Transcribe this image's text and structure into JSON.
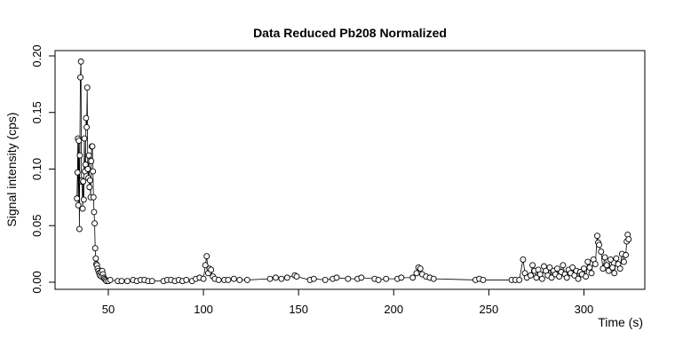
{
  "chart_data": {
    "type": "line",
    "title": "Data Reduced Pb208 Normalized",
    "x_label": "Time (s)",
    "y_label": "Signal intensity (cps)",
    "x": [
      33.5,
      33.8,
      34,
      34.2,
      34.5,
      34.8,
      35,
      35.3,
      35.6,
      35.9,
      36.2,
      36.5,
      36.8,
      37.1,
      37.4,
      37.7,
      38,
      38.3,
      38.6,
      38.9,
      39.2,
      39.5,
      39.8,
      40.1,
      40.4,
      40.7,
      41,
      41.3,
      41.6,
      41.9,
      42.2,
      42.5,
      42.8,
      43.1,
      43.4,
      43.7,
      44,
      44.4,
      44.8,
      45.2,
      45.6,
      46,
      46.4,
      46.8,
      47.2,
      47.6,
      48,
      48.5,
      49,
      50,
      51,
      55,
      57,
      60,
      63,
      65,
      67,
      69,
      71,
      73,
      79,
      81,
      83,
      85,
      87,
      89,
      91,
      94,
      96,
      98,
      100,
      101,
      101.7,
      102.5,
      103.2,
      104,
      105,
      106,
      108,
      111,
      113,
      116,
      119,
      123,
      135,
      138,
      141,
      144,
      148,
      149,
      156,
      158,
      164,
      168,
      170,
      176,
      181,
      183,
      190,
      192,
      196,
      202,
      204,
      210,
      212,
      213,
      214,
      215,
      217,
      219,
      221,
      243,
      245,
      247,
      262,
      264,
      266,
      268,
      269,
      270,
      272,
      273,
      274,
      275,
      276,
      277,
      278,
      279,
      280,
      281,
      282,
      283,
      284,
      285,
      286,
      287,
      288,
      289,
      290,
      291,
      292,
      293,
      294,
      295,
      296,
      297,
      298,
      299,
      300,
      301,
      302,
      303,
      304,
      305,
      306,
      307,
      307.5,
      308,
      309,
      310,
      311,
      312,
      313,
      314,
      315,
      316,
      317,
      318,
      319,
      320,
      321,
      322,
      322.5,
      323,
      323.5
    ],
    "values": [
      0.074,
      0.097,
      0.127,
      0.068,
      0.125,
      0.047,
      0.112,
      0.181,
      0.195,
      0.089,
      0.09,
      0.065,
      0.089,
      0.073,
      0.127,
      0.098,
      0.104,
      0.145,
      0.137,
      0.172,
      0.1,
      0.092,
      0.112,
      0.084,
      0.09,
      0.075,
      0.107,
      0.12,
      0.12,
      0.098,
      0.075,
      0.062,
      0.052,
      0.03,
      0.021,
      0.016,
      0.015,
      0.012,
      0.01,
      0.008,
      0.006,
      0.009,
      0.005,
      0.01,
      0.007,
      0.004,
      0.003,
      0.002,
      0.001,
      0.001,
      0.002,
      0.001,
      0.001,
      0.001,
      0.002,
      0.001,
      0.002,
      0.002,
      0.001,
      0.001,
      0.001,
      0.002,
      0.002,
      0.001,
      0.002,
      0.001,
      0.002,
      0.001,
      0.003,
      0.004,
      0.003,
      0.015,
      0.023,
      0.008,
      0.012,
      0.011,
      0.005,
      0.003,
      0.002,
      0.002,
      0.002,
      0.003,
      0.002,
      0.002,
      0.003,
      0.004,
      0.003,
      0.004,
      0.006,
      0.005,
      0.002,
      0.003,
      0.002,
      0.003,
      0.004,
      0.003,
      0.003,
      0.004,
      0.003,
      0.002,
      0.003,
      0.003,
      0.004,
      0.004,
      0.008,
      0.013,
      0.012,
      0.007,
      0.005,
      0.004,
      0.003,
      0.002,
      0.003,
      0.002,
      0.002,
      0.002,
      0.002,
      0.02,
      0.008,
      0.004,
      0.006,
      0.015,
      0.01,
      0.004,
      0.011,
      0.007,
      0.003,
      0.014,
      0.01,
      0.006,
      0.013,
      0.004,
      0.01,
      0.007,
      0.012,
      0.005,
      0.009,
      0.015,
      0.007,
      0.004,
      0.011,
      0.008,
      0.013,
      0.006,
      0.01,
      0.003,
      0.009,
      0.007,
      0.012,
      0.005,
      0.018,
      0.013,
      0.008,
      0.02,
      0.016,
      0.041,
      0.035,
      0.033,
      0.027,
      0.012,
      0.022,
      0.015,
      0.01,
      0.02,
      0.013,
      0.008,
      0.021,
      0.016,
      0.012,
      0.025,
      0.018,
      0.024,
      0.036,
      0.042,
      0.038
    ],
    "color": "#000000",
    "xlim": [
      22,
      332
    ],
    "ylim": [
      -0.0063,
      0.2047
    ],
    "xticks": [
      50,
      100,
      150,
      200,
      250,
      300
    ],
    "yticks": [
      {
        "value": 0,
        "label": "0.00"
      },
      {
        "value": 0.05,
        "label": "0.05"
      },
      {
        "value": 0.1,
        "label": "0.10"
      },
      {
        "value": 0.15,
        "label": "0.15"
      },
      {
        "value": 0.2,
        "label": "0.20"
      }
    ]
  }
}
